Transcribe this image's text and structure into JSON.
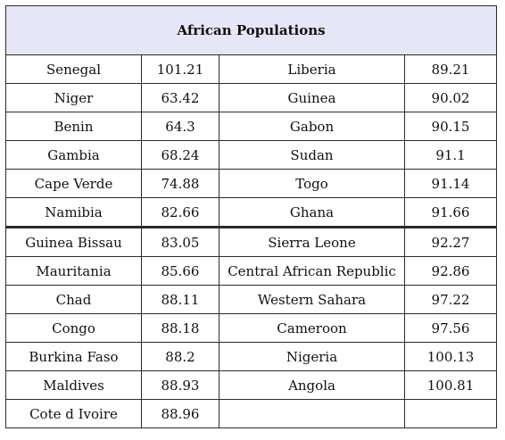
{
  "table": {
    "title": "African Populations",
    "rows": [
      {
        "country_a": "Senegal",
        "value_a": "101.21",
        "country_b": "Liberia",
        "value_b": "89.21"
      },
      {
        "country_a": "Niger",
        "value_a": "63.42",
        "country_b": "Guinea",
        "value_b": "90.02"
      },
      {
        "country_a": "Benin",
        "value_a": "64.3",
        "country_b": "Gabon",
        "value_b": "90.15"
      },
      {
        "country_a": "Gambia",
        "value_a": "68.24",
        "country_b": "Sudan",
        "value_b": "91.1"
      },
      {
        "country_a": "Cape Verde",
        "value_a": "74.88",
        "country_b": "Togo",
        "value_b": "91.14"
      },
      {
        "country_a": "Namibia",
        "value_a": "82.66",
        "country_b": "Ghana",
        "value_b": "91.66"
      },
      {
        "country_a": "Guinea Bissau",
        "value_a": "83.05",
        "country_b": "Sierra Leone",
        "value_b": "92.27"
      },
      {
        "country_a": "Mauritania",
        "value_a": "85.66",
        "country_b": "Central African Republic",
        "value_b": "92.86"
      },
      {
        "country_a": "Chad",
        "value_a": "88.11",
        "country_b": "Western Sahara",
        "value_b": "97.22"
      },
      {
        "country_a": "Congo",
        "value_a": "88.18",
        "country_b": "Cameroon",
        "value_b": "97.56"
      },
      {
        "country_a": "Burkina Faso",
        "value_a": "88.2",
        "country_b": "Nigeria",
        "value_b": "100.13"
      },
      {
        "country_a": "Maldives",
        "value_a": "88.93",
        "country_b": "Angola",
        "value_b": "100.81"
      },
      {
        "country_a": "Cote d Ivoire",
        "value_a": "88.96",
        "country_b": "",
        "value_b": ""
      }
    ]
  }
}
